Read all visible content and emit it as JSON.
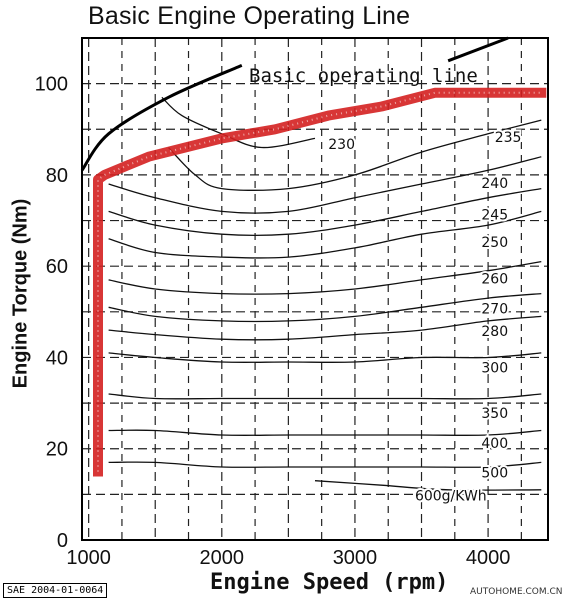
{
  "title": "Basic Engine Operating Line",
  "footnote": "SAE 2004-01-0064",
  "watermark": "AUTOHOME.COM.CN",
  "chart_data": {
    "type": "line",
    "title": "Basic Engine Operating Line",
    "xlabel": "Engine Speed (rpm)",
    "ylabel": "Engine Torque (Nm)",
    "xlim": [
      950,
      4450
    ],
    "ylim": [
      0,
      110
    ],
    "xticks": [
      1000,
      2000,
      3000,
      4000
    ],
    "yticks": [
      0,
      20,
      40,
      60,
      80,
      100
    ],
    "grid": true,
    "annotation": "Basic operating line",
    "contour_unit": "g/KWh",
    "max_torque_curve": {
      "x": [
        950,
        1150,
        1600,
        2150
      ],
      "y": [
        81,
        89,
        97,
        104
      ]
    },
    "contours": [
      {
        "label": "230",
        "x": [
          1550,
          1700,
          2000,
          2300,
          2700
        ],
        "y": [
          97,
          93,
          89,
          86,
          88
        ]
      },
      {
        "label": "235",
        "x": [
          1600,
          1800,
          2000,
          2500,
          3000,
          3500,
          4000,
          4400
        ],
        "y": [
          86,
          80,
          77,
          77,
          80,
          85,
          89,
          92
        ]
      },
      {
        "label": "240",
        "x": [
          1150,
          1500,
          2000,
          2500,
          3000,
          3500,
          4000,
          4400
        ],
        "y": [
          78,
          75,
          72,
          72,
          75,
          78,
          81,
          84
        ]
      },
      {
        "label": "245",
        "x": [
          1150,
          1500,
          2000,
          2500,
          3000,
          3500,
          4000,
          4400
        ],
        "y": [
          72,
          69,
          67,
          67,
          69,
          72,
          75,
          77
        ]
      },
      {
        "label": "250",
        "x": [
          1150,
          1500,
          2000,
          2500,
          3000,
          3500,
          4000,
          4400
        ],
        "y": [
          66,
          63,
          62,
          62,
          64,
          67,
          69,
          72
        ]
      },
      {
        "label": "260",
        "x": [
          1150,
          1500,
          2000,
          2500,
          3000,
          3500,
          4000,
          4400
        ],
        "y": [
          57,
          55,
          54,
          54,
          55,
          57,
          59,
          61
        ]
      },
      {
        "label": "270",
        "x": [
          1150,
          1500,
          2000,
          2500,
          3000,
          3500,
          4000,
          4400
        ],
        "y": [
          51,
          49,
          48,
          48,
          49,
          51,
          53,
          54
        ]
      },
      {
        "label": "280",
        "x": [
          1150,
          1500,
          2000,
          2500,
          3000,
          3500,
          4000,
          4400
        ],
        "y": [
          46,
          45,
          44,
          44,
          45,
          46,
          48,
          49
        ]
      },
      {
        "label": "300",
        "x": [
          1150,
          1500,
          2000,
          2500,
          3000,
          3500,
          4000,
          4400
        ],
        "y": [
          41,
          40,
          39,
          39,
          39,
          40,
          40,
          41
        ]
      },
      {
        "label": "350",
        "x": [
          1150,
          1500,
          2000,
          2500,
          3000,
          3500,
          4000,
          4400
        ],
        "y": [
          32,
          31,
          31,
          31,
          31,
          31,
          31,
          32
        ]
      },
      {
        "label": "400",
        "x": [
          1150,
          1500,
          2000,
          2500,
          3000,
          3500,
          4000,
          4400
        ],
        "y": [
          24,
          24,
          23,
          23,
          23,
          23,
          23,
          24
        ]
      },
      {
        "label": "500",
        "x": [
          1150,
          1500,
          2000,
          2500,
          3000,
          3500,
          4000,
          4400
        ],
        "y": [
          17,
          17,
          16,
          16,
          16,
          16,
          16,
          17
        ]
      },
      {
        "label": "600g/KWh",
        "x": [
          2700,
          3200,
          3700,
          4400
        ],
        "y": [
          13,
          12,
          11,
          11
        ]
      }
    ],
    "contour_labels": [
      {
        "text": "230",
        "x": 2900,
        "y": 87
      },
      {
        "text": "235",
        "x": 4150,
        "y": 88.5
      },
      {
        "text": "240",
        "x": 4050,
        "y": 78.5
      },
      {
        "text": "245",
        "x": 4050,
        "y": 71.5
      },
      {
        "text": "250",
        "x": 4050,
        "y": 65.5
      },
      {
        "text": "260",
        "x": 4050,
        "y": 57.5
      },
      {
        "text": "270",
        "x": 4050,
        "y": 51
      },
      {
        "text": "280",
        "x": 4050,
        "y": 46
      },
      {
        "text": "300",
        "x": 4050,
        "y": 38
      },
      {
        "text": "350",
        "x": 4050,
        "y": 28
      },
      {
        "text": "400",
        "x": 4050,
        "y": 21.5
      },
      {
        "text": "500",
        "x": 4050,
        "y": 15
      },
      {
        "text": "600g/KWh",
        "x": 3720,
        "y": 10
      }
    ],
    "series": [
      {
        "name": "Basic operating line",
        "color": "#d42020",
        "x": [
          1070,
          1070,
          1120,
          1450,
          2000,
          2400,
          2800,
          3200,
          3600,
          3700,
          4400
        ],
        "y": [
          15,
          79,
          80,
          84,
          88,
          90,
          93,
          95,
          98,
          98,
          98
        ]
      }
    ]
  }
}
